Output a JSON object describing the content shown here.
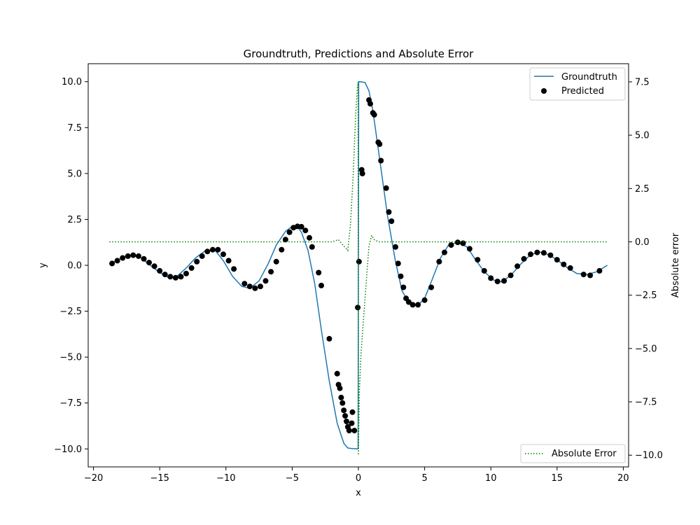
{
  "chart_data": {
    "type": "line",
    "title": "Groundtruth, Predictions and Absolute Error",
    "xlabel": "x",
    "ylabel": "y",
    "y2label": "Absolute error",
    "xlim": [
      -20.4,
      20.4
    ],
    "ylim": [
      -10.98,
      10.98
    ],
    "y2lim": [
      -10.55,
      8.35
    ],
    "xticks": [
      -20,
      -15,
      -10,
      -5,
      0,
      5,
      10,
      15,
      20
    ],
    "yticks": [
      -10.0,
      -7.5,
      -5.0,
      -2.5,
      0.0,
      2.5,
      5.0,
      7.5,
      10.0
    ],
    "y2ticks": [
      -10.0,
      -7.5,
      -5.0,
      -2.5,
      0.0,
      2.5,
      5.0,
      7.5
    ],
    "legend_main": {
      "position": "upper right",
      "entries": [
        "Groundtruth",
        "Predicted"
      ]
    },
    "legend_error": {
      "position": "lower right",
      "entries": [
        "Absolute Error"
      ]
    },
    "colors": {
      "groundtruth": "#1f77b4",
      "predicted": "#000000",
      "error": "#008000"
    },
    "series": [
      {
        "name": "Groundtruth",
        "style": "solid line",
        "x": [
          -18.8,
          -18.0,
          -17.3,
          -16.5,
          -15.8,
          -15.0,
          -14.3,
          -13.7,
          -13.0,
          -12.3,
          -11.5,
          -10.8,
          -10.2,
          -9.5,
          -8.8,
          -8.2,
          -7.5,
          -6.8,
          -6.2,
          -5.5,
          -5.0,
          -4.6,
          -4.3,
          -3.8,
          -3.3,
          -2.8,
          -2.2,
          -1.6,
          -1.1,
          -0.8,
          -0.5,
          -0.25,
          -0.02,
          0.02,
          0.25,
          0.5,
          0.8,
          1.1,
          1.6,
          2.2,
          2.8,
          3.3,
          3.8,
          4.3,
          4.6,
          5.0,
          5.5,
          6.2,
          6.8,
          7.5,
          8.2,
          8.8,
          9.5,
          10.2,
          10.8,
          11.5,
          12.3,
          13.0,
          13.7,
          14.3,
          15.0,
          15.8,
          16.5,
          17.3,
          18.0,
          18.8
        ],
        "y": [
          0.05,
          0.35,
          0.55,
          0.45,
          0.05,
          -0.4,
          -0.68,
          -0.6,
          -0.15,
          0.4,
          0.82,
          0.8,
          0.25,
          -0.6,
          -1.15,
          -1.25,
          -0.85,
          0.1,
          1.1,
          1.85,
          2.12,
          2.1,
          1.8,
          0.8,
          -1.0,
          -3.5,
          -6.3,
          -8.6,
          -9.7,
          -9.95,
          -9.98,
          -9.99,
          -10.0,
          10.0,
          9.99,
          9.95,
          9.5,
          8.4,
          5.8,
          2.7,
          0.2,
          -1.4,
          -2.0,
          -2.15,
          -2.1,
          -1.8,
          -0.9,
          0.4,
          1.1,
          1.25,
          1.0,
          0.35,
          -0.35,
          -0.8,
          -0.9,
          -0.55,
          0.1,
          0.58,
          0.72,
          0.6,
          0.3,
          -0.15,
          -0.45,
          -0.5,
          -0.35,
          0.0
        ]
      },
      {
        "name": "Predicted",
        "style": "scatter",
        "x": [
          -18.6,
          -18.2,
          -17.8,
          -17.4,
          -17.0,
          -16.6,
          -16.2,
          -15.8,
          -15.4,
          -15.0,
          -14.6,
          -14.2,
          -13.8,
          -13.4,
          -13.0,
          -12.6,
          -12.2,
          -11.8,
          -11.4,
          -11.0,
          -10.6,
          -10.2,
          -9.8,
          -9.4,
          -8.6,
          -8.2,
          -7.8,
          -7.4,
          -7.0,
          -6.6,
          -6.2,
          -5.8,
          -5.5,
          -5.2,
          -4.9,
          -4.6,
          -4.3,
          -4.0,
          -3.7,
          -3.5,
          -3.0,
          -2.8,
          -2.2,
          -1.6,
          -1.5,
          -1.4,
          -1.3,
          -1.2,
          -1.1,
          -1.0,
          -0.9,
          -0.8,
          -0.7,
          -0.5,
          -0.45,
          -0.3,
          -0.05,
          0.05,
          0.25,
          0.3,
          0.8,
          0.9,
          1.1,
          1.2,
          1.5,
          1.6,
          1.7,
          2.1,
          2.3,
          2.5,
          2.8,
          3.0,
          3.2,
          3.4,
          3.6,
          3.8,
          4.1,
          4.5,
          5.0,
          5.5,
          6.1,
          6.5,
          7.0,
          7.5,
          7.9,
          8.4,
          9.0,
          9.5,
          10.0,
          10.5,
          11.0,
          11.5,
          12.0,
          12.5,
          13.0,
          13.5,
          14.0,
          14.5,
          15.0,
          15.5,
          16.0,
          17.0,
          17.5,
          18.2
        ],
        "y": [
          0.1,
          0.25,
          0.4,
          0.5,
          0.55,
          0.5,
          0.35,
          0.15,
          -0.05,
          -0.3,
          -0.5,
          -0.62,
          -0.68,
          -0.62,
          -0.45,
          -0.15,
          0.2,
          0.5,
          0.75,
          0.85,
          0.85,
          0.6,
          0.25,
          -0.2,
          -1.0,
          -1.15,
          -1.25,
          -1.15,
          -0.85,
          -0.35,
          0.2,
          0.85,
          1.4,
          1.8,
          2.05,
          2.12,
          2.1,
          1.9,
          1.5,
          1.0,
          -0.4,
          -1.1,
          -4.0,
          -5.9,
          -6.5,
          -6.7,
          -7.2,
          -7.5,
          -7.9,
          -8.2,
          -8.5,
          -8.8,
          -9.0,
          -8.6,
          -8.0,
          -9.0,
          -2.3,
          0.2,
          5.2,
          5.0,
          9.0,
          8.8,
          8.3,
          8.2,
          6.7,
          6.6,
          5.7,
          4.2,
          2.9,
          2.4,
          1.0,
          0.1,
          -0.6,
          -1.2,
          -1.8,
          -2.0,
          -2.15,
          -2.15,
          -1.9,
          -1.2,
          0.2,
          0.7,
          1.1,
          1.25,
          1.2,
          0.9,
          0.3,
          -0.3,
          -0.7,
          -0.88,
          -0.85,
          -0.55,
          -0.05,
          0.35,
          0.6,
          0.7,
          0.68,
          0.55,
          0.3,
          0.05,
          -0.15,
          -0.5,
          -0.55,
          -0.3
        ]
      },
      {
        "name": "Absolute Error",
        "style": "dotted line",
        "axis": "right",
        "x": [
          -18.8,
          -2.0,
          -1.5,
          -1.1,
          -0.8,
          -0.6,
          -0.4,
          -0.2,
          -0.08,
          -0.02,
          0.0,
          0.02,
          0.08,
          0.2,
          0.4,
          0.6,
          0.8,
          1.0,
          1.2,
          1.5,
          2.0,
          18.8
        ],
        "y": [
          0.0,
          0.0,
          0.1,
          -0.2,
          -0.4,
          0.8,
          3.0,
          6.0,
          7.2,
          7.5,
          -10.0,
          -9.0,
          -7.0,
          -5.2,
          -3.5,
          -1.8,
          -0.2,
          0.3,
          0.1,
          0.0,
          0.0,
          0.0
        ]
      }
    ]
  }
}
